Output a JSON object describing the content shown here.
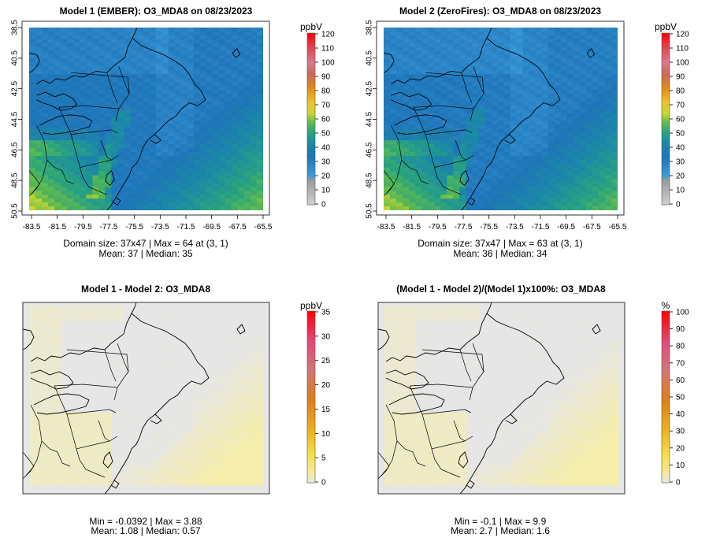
{
  "chart_data": [
    {
      "type": "heatmap",
      "title": "Model 1 (EMBER): O3_MDA8 on 08/23/2023",
      "x_ticks": [
        "-83.5",
        "-81.5",
        "-79.5",
        "-77.5",
        "-75.5",
        "-73.5",
        "-71.5",
        "-69.5",
        "-67.5",
        "-65.5"
      ],
      "y_ticks": [
        "38.5",
        "40.5",
        "42.5",
        "44.5",
        "46.5",
        "48.5",
        "50.5"
      ],
      "colorbar": {
        "unit": "ppbV",
        "min": 0,
        "max": 120,
        "ticks": [
          "0",
          "10",
          "20",
          "30",
          "40",
          "50",
          "60",
          "70",
          "80",
          "90",
          "100",
          "110",
          "120"
        ]
      },
      "caption_line1": "Domain size: 37x47 | Max = 64 at (3, 1)",
      "caption_line2": "Mean: 37 |  Median: 35",
      "mean": 37,
      "median": 35,
      "max": 64
    },
    {
      "type": "heatmap",
      "title": "Model 2 (ZeroFires): O3_MDA8 on 08/23/2023",
      "x_ticks": [
        "-83.5",
        "-81.5",
        "-79.5",
        "-77.5",
        "-75.5",
        "-73.5",
        "-71.5",
        "-69.5",
        "-67.5",
        "-65.5"
      ],
      "y_ticks": [
        "38.5",
        "40.5",
        "42.5",
        "44.5",
        "46.5",
        "48.5",
        "50.5"
      ],
      "colorbar": {
        "unit": "ppbV",
        "min": 0,
        "max": 120,
        "ticks": [
          "0",
          "10",
          "20",
          "30",
          "40",
          "50",
          "60",
          "70",
          "80",
          "90",
          "100",
          "110",
          "120"
        ]
      },
      "caption_line1": "Domain size: 37x47 | Max = 63 at (3, 1)",
      "caption_line2": "Mean: 36 |  Median: 34",
      "mean": 36,
      "median": 34,
      "max": 63
    },
    {
      "type": "heatmap",
      "title": "Model 1 - Model 2: O3_MDA8",
      "colorbar": {
        "unit": "ppbV",
        "min": 0,
        "max": 35,
        "ticks": [
          "0",
          "5",
          "10",
          "15",
          "20",
          "25",
          "30",
          "35"
        ]
      },
      "caption_line1": "Min = -0.0392 | Max = 3.88",
      "caption_line2": "Mean: 1.08 |  Median: 0.57",
      "min": -0.0392,
      "max": 3.88,
      "mean": 1.08,
      "median": 0.57
    },
    {
      "type": "heatmap",
      "title": "(Model 1 - Model 2)/(Model 1)x100%: O3_MDA8",
      "colorbar": {
        "unit": "%",
        "min": 0,
        "max": 100,
        "ticks": [
          "0",
          "10",
          "20",
          "30",
          "40",
          "50",
          "60",
          "70",
          "80",
          "90",
          "100"
        ]
      },
      "caption_line1": "Min = -0.1 | Max = 9.9",
      "caption_line2": "Mean: 2.7 |  Median: 1.6",
      "min": -0.1,
      "max": 9.9,
      "mean": 2.7,
      "median": 1.6
    }
  ],
  "colors": {
    "conc_scale": [
      "#c8c8c8",
      "#a0a0a0",
      "#2c8fd6",
      "#1f6fb0",
      "#23999a",
      "#3fb36b",
      "#8ac43e",
      "#e3c72e",
      "#e07c18",
      "#e07b8a",
      "#d4647a",
      "#e23a3a",
      "#ff0000"
    ],
    "diff_scale": [
      "#e5e5e5",
      "#f5e998",
      "#f6d93a",
      "#eba414",
      "#d86e14",
      "#d26a8a",
      "#e23a7a",
      "#ff0000"
    ]
  }
}
